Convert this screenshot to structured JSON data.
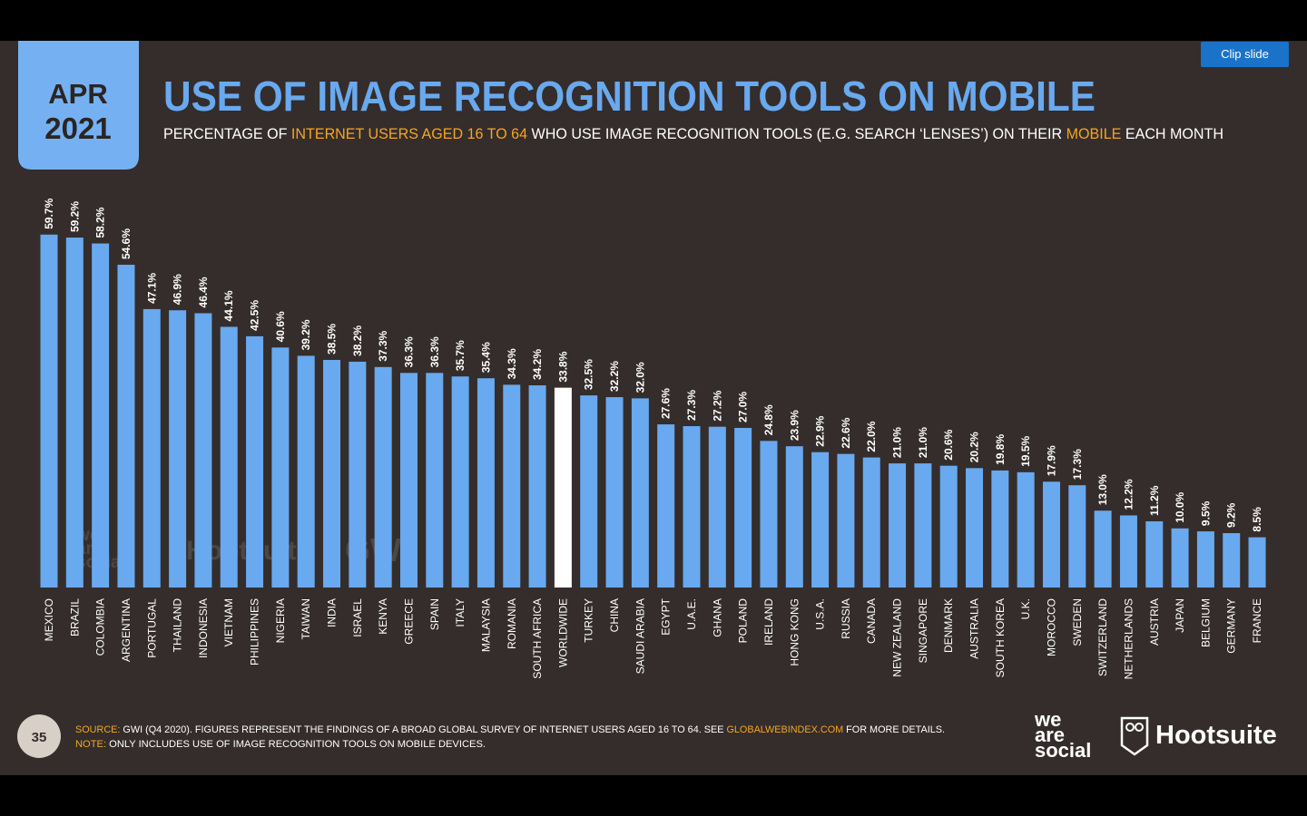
{
  "slide": {
    "date_month": "APR",
    "date_year": "2021",
    "page": "35",
    "clip_button": "Clip slide",
    "brand_left": [
      "we",
      "are",
      "social"
    ],
    "brand_right": "Hootsuite",
    "watermark": [
      "we",
      "are",
      "social",
      "Hootsuite",
      "GWI."
    ],
    "source": [
      {
        "text": "SOURCE: ",
        "color": "#f5a623"
      },
      {
        "text": "GWI (Q4 2020). FIGURES REPRESENT THE FINDINGS OF A BROAD GLOBAL SURVEY OF INTERNET USERS AGED 16 TO 64. SEE ",
        "color": "#ffffff"
      },
      {
        "text": "GLOBALWEBINDEX.COM",
        "color": "#f5a623"
      },
      {
        "text": " FOR MORE DETAILS.",
        "color": "#ffffff"
      }
    ],
    "note": [
      {
        "text": "NOTE: ",
        "color": "#f5a623"
      },
      {
        "text": "ONLY INCLUDES USE OF IMAGE RECOGNITION TOOLS ON MOBILE DEVICES.",
        "color": "#ffffff"
      }
    ]
  },
  "chart_data": {
    "type": "bar",
    "title": "USE OF IMAGE RECOGNITION TOOLS ON MOBILE",
    "subtitle": [
      {
        "text": "PERCENTAGE OF ",
        "color": "#ffffff"
      },
      {
        "text": "INTERNET USERS AGED 16 TO 64",
        "color": "#f5a623"
      },
      {
        "text": " WHO USE IMAGE RECOGNITION TOOLS (E.G. SEARCH ‘LENSES’) ON THEIR ",
        "color": "#ffffff"
      },
      {
        "text": "MOBILE",
        "color": "#f5a623"
      },
      {
        "text": " EACH MONTH",
        "color": "#ffffff"
      }
    ],
    "categories": [
      "MEXICO",
      "BRAZIL",
      "COLOMBIA",
      "ARGENTINA",
      "PORTUGAL",
      "THAILAND",
      "INDONESIA",
      "VIETNAM",
      "PHILIPPINES",
      "NIGERIA",
      "TAIWAN",
      "INDIA",
      "ISRAEL",
      "KENYA",
      "GREECE",
      "SPAIN",
      "ITALY",
      "MALAYSIA",
      "ROMANIA",
      "SOUTH AFRICA",
      "WORLDWIDE",
      "TURKEY",
      "CHINA",
      "SAUDI ARABIA",
      "EGYPT",
      "U.A.E.",
      "GHANA",
      "POLAND",
      "IRELAND",
      "HONG KONG",
      "U.S.A.",
      "RUSSIA",
      "CANADA",
      "NEW ZEALAND",
      "SINGAPORE",
      "DENMARK",
      "AUSTRALIA",
      "SOUTH KOREA",
      "U.K.",
      "MOROCCO",
      "SWEDEN",
      "SWITZERLAND",
      "NETHERLANDS",
      "AUSTRIA",
      "JAPAN",
      "BELGIUM",
      "GERMANY",
      "FRANCE"
    ],
    "values": [
      59.7,
      59.2,
      58.2,
      54.6,
      47.1,
      46.9,
      46.4,
      44.1,
      42.5,
      40.6,
      39.2,
      38.5,
      38.2,
      37.3,
      36.3,
      36.3,
      35.7,
      35.4,
      34.3,
      34.2,
      33.8,
      32.5,
      32.2,
      32.0,
      27.6,
      27.3,
      27.2,
      27.0,
      24.8,
      23.9,
      22.9,
      22.6,
      22.0,
      21.0,
      21.0,
      20.6,
      20.2,
      19.8,
      19.5,
      17.9,
      17.3,
      13.0,
      12.2,
      11.2,
      10.0,
      9.5,
      9.2,
      8.5
    ],
    "value_labels": [
      "59.7%",
      "59.2%",
      "58.2%",
      "54.6%",
      "47.1%",
      "46.9%",
      "46.4%",
      "44.1%",
      "42.5%",
      "40.6%",
      "39.2%",
      "38.5%",
      "38.2%",
      "37.3%",
      "36.3%",
      "36.3%",
      "35.7%",
      "35.4%",
      "34.3%",
      "34.2%",
      "33.8%",
      "32.5%",
      "32.2%",
      "32.0%",
      "27.6%",
      "27.3%",
      "27.2%",
      "27.0%",
      "24.8%",
      "23.9%",
      "22.9%",
      "22.6%",
      "22.0%",
      "21.0%",
      "21.0%",
      "20.6%",
      "20.2%",
      "19.8%",
      "19.5%",
      "17.9%",
      "17.3%",
      "13.0%",
      "12.2%",
      "11.2%",
      "10.0%",
      "9.5%",
      "9.2%",
      "8.5%"
    ],
    "colors": [
      "#69a9ef",
      "#69a9ef",
      "#69a9ef",
      "#69a9ef",
      "#69a9ef",
      "#69a9ef",
      "#69a9ef",
      "#69a9ef",
      "#69a9ef",
      "#69a9ef",
      "#69a9ef",
      "#69a9ef",
      "#69a9ef",
      "#69a9ef",
      "#69a9ef",
      "#69a9ef",
      "#69a9ef",
      "#69a9ef",
      "#69a9ef",
      "#69a9ef",
      "#ffffff",
      "#69a9ef",
      "#69a9ef",
      "#69a9ef",
      "#69a9ef",
      "#69a9ef",
      "#69a9ef",
      "#69a9ef",
      "#69a9ef",
      "#69a9ef",
      "#69a9ef",
      "#69a9ef",
      "#69a9ef",
      "#69a9ef",
      "#69a9ef",
      "#69a9ef",
      "#69a9ef",
      "#69a9ef",
      "#69a9ef",
      "#69a9ef",
      "#69a9ef",
      "#69a9ef",
      "#69a9ef",
      "#69a9ef",
      "#69a9ef",
      "#69a9ef",
      "#69a9ef",
      "#69a9ef"
    ]
  }
}
